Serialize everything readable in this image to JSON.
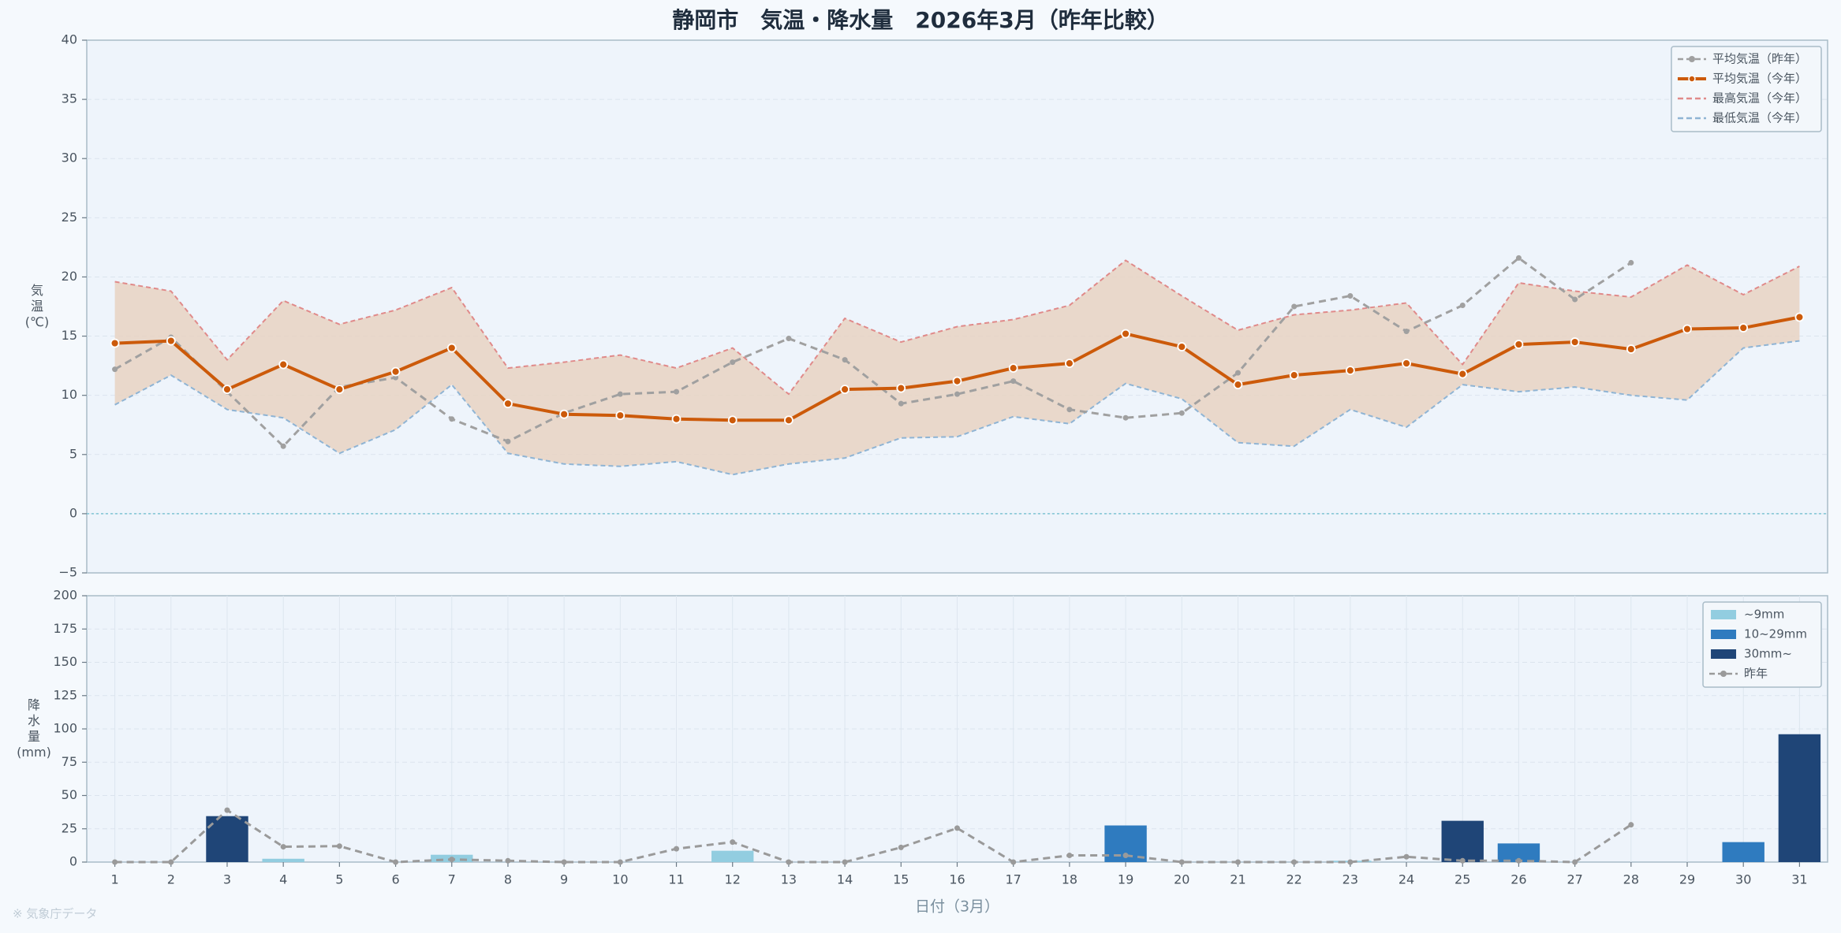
{
  "title": "静岡市　気温・降水量　2026年3月（昨年比較）",
  "footnote": "※ 気象庁データ",
  "chart_data": [
    {
      "type": "line",
      "ylabel": "気温(℃)",
      "ylim": [
        -5,
        40
      ],
      "yticks": [
        {
          "value": -5,
          "label": "−5"
        },
        0,
        5,
        10,
        15,
        20,
        25,
        30,
        35,
        40
      ],
      "grid": true,
      "zero_line_color": "#7fc4d4",
      "band_color": "#e8d2c2",
      "legend": "upper right",
      "series": [
        {
          "name": "平均気温（昨年）",
          "color": "#a0a0a0",
          "dashed": true,
          "markers": true,
          "values": [
            12.2,
            14.9,
            10.3,
            5.7,
            10.7,
            11.5,
            8.0,
            6.1,
            8.5,
            10.1,
            10.3,
            12.8,
            14.8,
            13.0,
            9.3,
            10.1,
            11.2,
            8.8,
            8.1,
            8.5,
            11.9,
            17.5,
            18.4,
            15.4,
            17.6,
            21.6,
            18.1,
            21.2,
            null,
            null,
            null
          ]
        },
        {
          "name": "平均気温（今年）",
          "color": "#cc5a0a",
          "dashed": false,
          "markers": true,
          "values": [
            14.4,
            14.6,
            10.5,
            12.6,
            10.5,
            12.0,
            14.0,
            9.3,
            8.4,
            8.3,
            8.0,
            7.9,
            7.9,
            10.5,
            10.6,
            11.2,
            12.3,
            12.7,
            15.2,
            14.1,
            10.9,
            11.7,
            12.1,
            12.7,
            11.8,
            14.3,
            14.5,
            13.9,
            15.6,
            15.7,
            16.6
          ]
        },
        {
          "name": "最高気温（今年）",
          "color": "#e08a8a",
          "dashed": true,
          "markers": false,
          "band": "upper",
          "values": [
            19.6,
            18.8,
            13.0,
            18.0,
            16.0,
            17.2,
            19.1,
            12.3,
            12.8,
            13.4,
            12.3,
            14.0,
            10.1,
            16.5,
            14.5,
            15.8,
            16.4,
            17.6,
            21.4,
            18.4,
            15.5,
            16.8,
            17.2,
            17.8,
            12.6,
            19.5,
            18.8,
            18.3,
            21.0,
            18.5,
            20.9
          ]
        },
        {
          "name": "最低気温（今年）",
          "color": "#8fb4d4",
          "dashed": true,
          "markers": false,
          "band": "lower",
          "values": [
            9.2,
            11.7,
            8.8,
            8.1,
            5.1,
            7.1,
            10.9,
            5.1,
            4.2,
            4.0,
            4.4,
            3.3,
            4.2,
            4.7,
            6.4,
            6.5,
            8.2,
            7.6,
            11.0,
            9.7,
            6.0,
            5.7,
            8.8,
            7.3,
            10.9,
            10.3,
            10.7,
            10.0,
            9.6,
            14.0,
            14.6
          ]
        }
      ]
    },
    {
      "type": "bar",
      "ylabel": "降水量(mm)",
      "xlabel": "日付（3月）",
      "categories": [
        "1",
        "2",
        "3",
        "4",
        "5",
        "6",
        "7",
        "8",
        "9",
        "10",
        "11",
        "12",
        "13",
        "14",
        "15",
        "16",
        "17",
        "18",
        "19",
        "20",
        "21",
        "22",
        "23",
        "24",
        "25",
        "26",
        "27",
        "28",
        "29",
        "30",
        "31"
      ],
      "ylim": [
        0,
        200
      ],
      "yticks": [
        0,
        25,
        50,
        75,
        100,
        125,
        150,
        175,
        200
      ],
      "grid": true,
      "legend": "upper right",
      "series": [
        {
          "name": "~9mm",
          "kind": "bar",
          "color": "#92cde0",
          "values": [
            0,
            0,
            null,
            2.5,
            0,
            0,
            5.5,
            0,
            0,
            0,
            0,
            8.5,
            0,
            0,
            0,
            0,
            0,
            0,
            null,
            0,
            0,
            0,
            1.0,
            0,
            null,
            null,
            0,
            0,
            0,
            null,
            null
          ]
        },
        {
          "name": "10~29mm",
          "kind": "bar",
          "color": "#2f7bbf",
          "values": [
            null,
            null,
            null,
            null,
            null,
            null,
            null,
            null,
            null,
            null,
            null,
            null,
            null,
            null,
            null,
            null,
            null,
            null,
            27.5,
            null,
            null,
            null,
            null,
            null,
            null,
            14,
            null,
            null,
            null,
            15,
            null
          ]
        },
        {
          "name": "30mm~",
          "kind": "bar",
          "color": "#1f4577",
          "values": [
            null,
            null,
            34.5,
            null,
            null,
            null,
            null,
            null,
            null,
            null,
            null,
            null,
            null,
            null,
            null,
            null,
            null,
            null,
            null,
            null,
            null,
            null,
            null,
            null,
            31,
            null,
            null,
            null,
            null,
            null,
            96
          ]
        },
        {
          "name": "昨年",
          "kind": "line",
          "color": "#9a9a9a",
          "dashed": true,
          "markers": true,
          "values": [
            0,
            0,
            39,
            11.5,
            12,
            0,
            2,
            1,
            0,
            0,
            10,
            15,
            0,
            0,
            11,
            25.5,
            0,
            5,
            5,
            0,
            0,
            0,
            0,
            4,
            1,
            1,
            0,
            28,
            null,
            null,
            null
          ]
        }
      ]
    }
  ]
}
